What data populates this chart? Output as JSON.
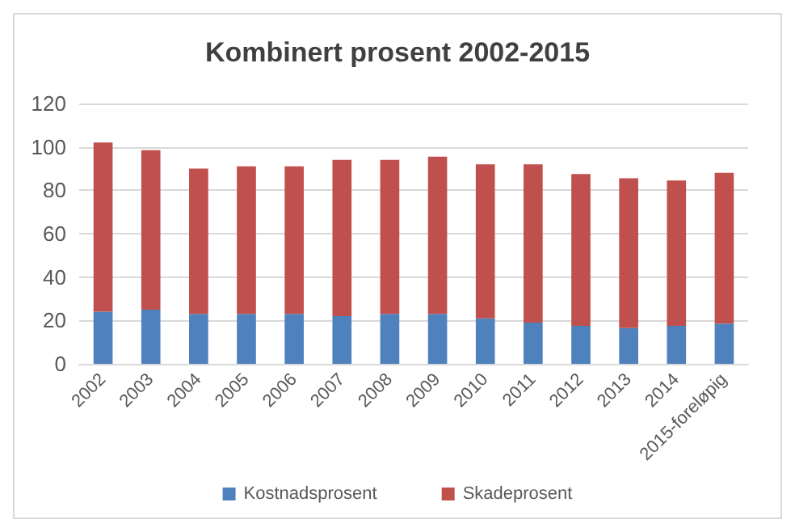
{
  "chart_data": {
    "type": "bar",
    "title": "Kombinert prosent 2002-2015",
    "stacked": true,
    "categories": [
      "2002",
      "2003",
      "2004",
      "2005",
      "2006",
      "2007",
      "2008",
      "2009",
      "2010",
      "2011",
      "2012",
      "2013",
      "2014",
      "2015-foreløpig"
    ],
    "series": [
      {
        "name": "Kostnadsprosent",
        "color": "#4f81bd",
        "values": [
          24,
          25,
          23,
          23,
          23,
          22,
          23,
          23,
          21,
          19,
          17.5,
          16.5,
          17.5,
          18.5
        ]
      },
      {
        "name": "Skadeprosent",
        "color": "#c0504d",
        "values": [
          78,
          73.5,
          67,
          68,
          68,
          72,
          71,
          72.5,
          71,
          73,
          70,
          69,
          67,
          69.5
        ]
      }
    ],
    "ylim": [
      0,
      120
    ],
    "yticks": [
      0,
      20,
      40,
      60,
      80,
      100,
      120
    ],
    "grid": "y",
    "legend": "bottom"
  }
}
